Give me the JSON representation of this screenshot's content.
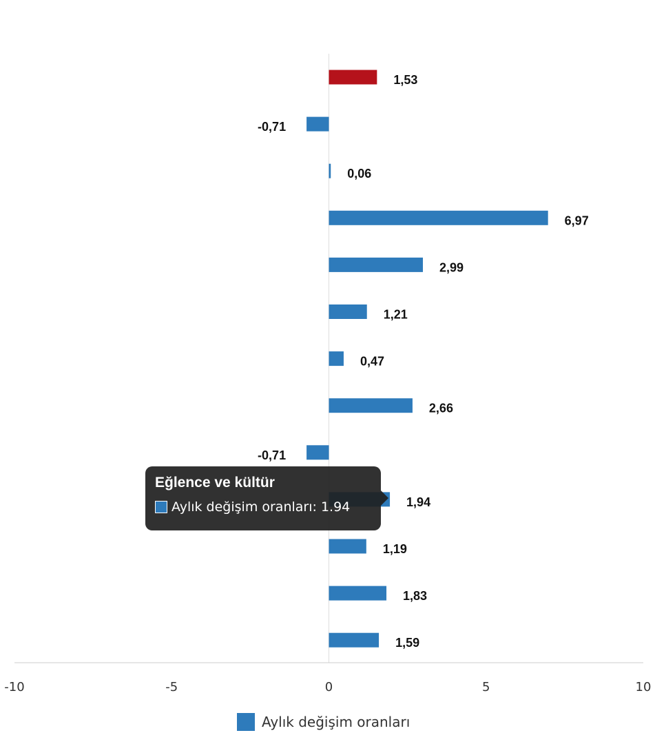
{
  "chart_data": {
    "type": "bar",
    "orientation": "horizontal",
    "categories": [
      "",
      "",
      "",
      "",
      "",
      "",
      "",
      "",
      "",
      "Eğlence ve kültür",
      "",
      "",
      ""
    ],
    "series": [
      {
        "name": "Aylık değişim oranları",
        "values": [
          1.53,
          -0.71,
          0.06,
          6.97,
          2.99,
          1.21,
          0.47,
          2.66,
          -0.71,
          1.94,
          1.19,
          1.83,
          1.59
        ],
        "data_labels": [
          "1,53",
          "-0,71",
          "0,06",
          "6,97",
          "2,99",
          "1,21",
          "0,47",
          "2,66",
          "-0,71",
          "1,94",
          "1,19",
          "1,83",
          "1,59"
        ]
      }
    ],
    "highlight_index": 0,
    "xlim": [
      -10,
      10
    ],
    "x_ticks": [
      -10,
      -5,
      0,
      5,
      10
    ],
    "x_tick_labels": [
      "-10",
      "-5",
      "0",
      "5",
      "10"
    ],
    "title": "",
    "xlabel": "",
    "ylabel": "",
    "grid": false,
    "legend_position": "bottom-center",
    "colors": {
      "series": "#2e7bbb",
      "highlight": "#b5121b",
      "axis": "#cccccc"
    }
  },
  "legend": {
    "label": "Aylık değişim oranları"
  },
  "tooltip": {
    "title": "Eğlence ve kültür",
    "series_label": "Aylık değişim oranları",
    "value": "1.94",
    "text": "Aylık değişim oranları: 1.94"
  }
}
